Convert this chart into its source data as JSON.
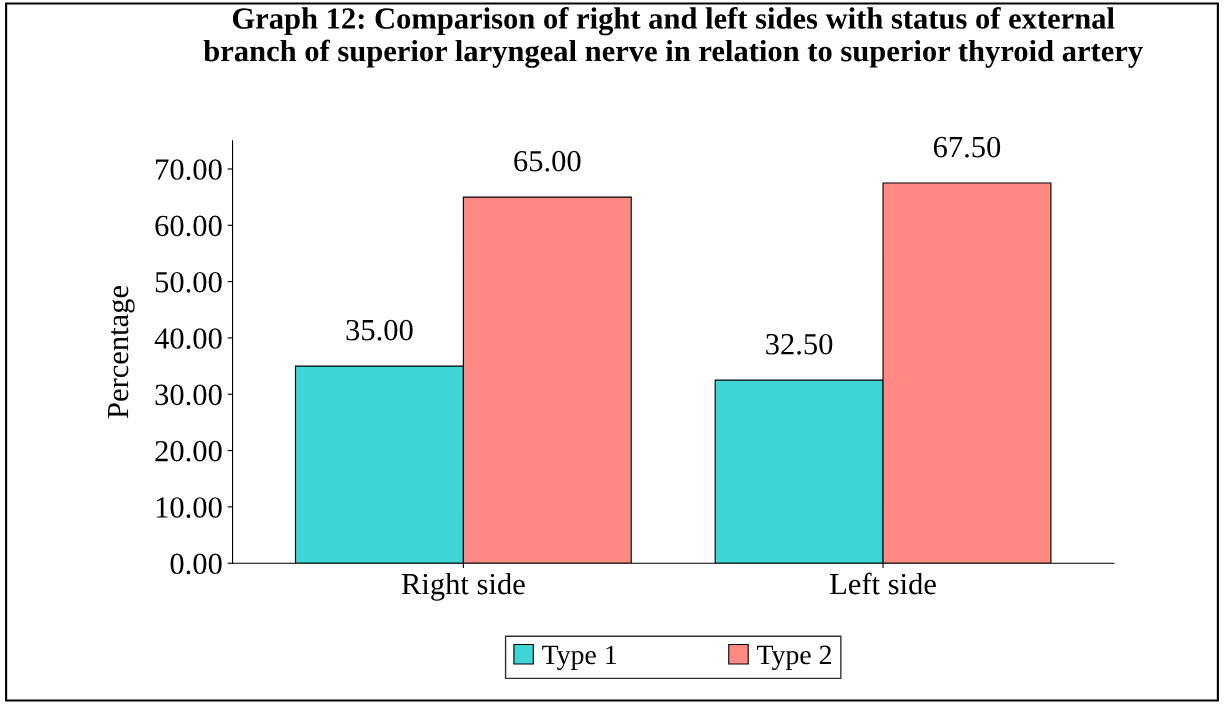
{
  "chart_data": {
    "type": "bar",
    "title": "Graph 12: Comparison of right and left sides with status of external\nbranch of superior laryngeal nerve in relation to superior thyroid artery",
    "ylabel": "Percentage",
    "categories": [
      "Right side",
      "Left side"
    ],
    "series": [
      {
        "name": "Type 1",
        "color": "#3dd5d5",
        "values": [
          35,
          32.5
        ],
        "value_labels": [
          "35.00",
          "32.50"
        ]
      },
      {
        "name": "Type 2",
        "color": "#ff8a84",
        "values": [
          65,
          67.5
        ],
        "value_labels": [
          "65.00",
          "67.50"
        ]
      }
    ],
    "ylim": [
      0,
      75
    ],
    "yticks": [
      {
        "value": 0,
        "label": "0.00"
      },
      {
        "value": 10,
        "label": "10.00"
      },
      {
        "value": 20,
        "label": "20.00"
      },
      {
        "value": 30,
        "label": "30.00"
      },
      {
        "value": 40,
        "label": "40.00"
      },
      {
        "value": 50,
        "label": "50.00"
      },
      {
        "value": 60,
        "label": "60.00"
      },
      {
        "value": 70,
        "label": "70.00"
      }
    ],
    "grid": false,
    "legend": "bottom"
  }
}
